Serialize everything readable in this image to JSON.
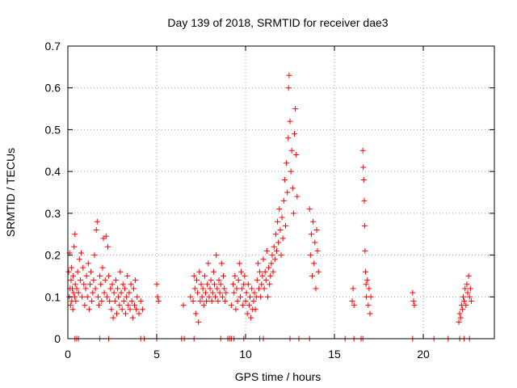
{
  "chart_data": {
    "type": "scatter",
    "title": "Day 139 of 2018, SRMTID for receiver dae3",
    "xlabel": "GPS time / hours",
    "ylabel": "SRMTID / TECUs",
    "xlim": [
      0,
      24
    ],
    "ylim": [
      0,
      0.7
    ],
    "xticks": [
      0,
      5,
      10,
      15,
      20
    ],
    "xtick_labels": [
      "0",
      "5",
      "10",
      "15",
      "20"
    ],
    "yticks": [
      0,
      0.1,
      0.2,
      0.3,
      0.4,
      0.5,
      0.6,
      0.7
    ],
    "ytick_labels": [
      "0",
      "0.1",
      "0.2",
      "0.3",
      "0.4",
      "0.5",
      "0.6",
      "0.7"
    ],
    "grid": true,
    "marker": "+",
    "color": "#ff0000",
    "series": [
      {
        "name": "SRMTID",
        "points": [
          [
            0.05,
            0.16
          ],
          [
            0.08,
            0.1
          ],
          [
            0.1,
            0.205
          ],
          [
            0.12,
            0.12
          ],
          [
            0.15,
            0.08
          ],
          [
            0.18,
            0.14
          ],
          [
            0.2,
            0.17
          ],
          [
            0.22,
            0.09
          ],
          [
            0.25,
            0.12
          ],
          [
            0.28,
            0.07
          ],
          [
            0.3,
            0.15
          ],
          [
            0.32,
            0.11
          ],
          [
            0.35,
            0.22
          ],
          [
            0.38,
            0.1
          ],
          [
            0.4,
            0.25
          ],
          [
            0.42,
            0.13
          ],
          [
            0.45,
            0.09
          ],
          [
            0.5,
            0.12
          ],
          [
            0.55,
            0.16
          ],
          [
            0.6,
            0.11
          ],
          [
            0.65,
            0.19
          ],
          [
            0.7,
            0.14
          ],
          [
            0.75,
            0.205
          ],
          [
            0.8,
            0.1
          ],
          [
            0.85,
            0.17
          ],
          [
            0.9,
            0.13
          ],
          [
            0.95,
            0.08
          ],
          [
            1.0,
            0.12
          ],
          [
            1.05,
            0.15
          ],
          [
            1.1,
            0.1
          ],
          [
            1.15,
            0.18
          ],
          [
            1.2,
            0.07
          ],
          [
            1.25,
            0.13
          ],
          [
            1.3,
            0.16
          ],
          [
            1.35,
            0.09
          ],
          [
            1.4,
            0.11
          ],
          [
            1.45,
            0.14
          ],
          [
            1.5,
            0.2
          ],
          [
            1.55,
            0.12
          ],
          [
            1.6,
            0.26
          ],
          [
            1.65,
            0.28
          ],
          [
            1.7,
            0.1
          ],
          [
            1.75,
            0.08
          ],
          [
            1.8,
            0.15
          ],
          [
            1.85,
            0.13
          ],
          [
            1.9,
            0.09
          ],
          [
            1.95,
            0.17
          ],
          [
            2.0,
            0.24
          ],
          [
            2.05,
            0.11
          ],
          [
            2.1,
            0.14
          ],
          [
            2.15,
            0.245
          ],
          [
            2.2,
            0.1
          ],
          [
            2.25,
            0.22
          ],
          [
            2.3,
            0.15
          ],
          [
            2.35,
            0.09
          ],
          [
            2.4,
            0.12
          ],
          [
            2.45,
            0.07
          ],
          [
            2.5,
            0.13
          ],
          [
            2.55,
            0.05
          ],
          [
            2.6,
            0.11
          ],
          [
            2.65,
            0.09
          ],
          [
            2.7,
            0.14
          ],
          [
            2.75,
            0.06
          ],
          [
            2.8,
            0.12
          ],
          [
            2.85,
            0.1
          ],
          [
            2.9,
            0.08
          ],
          [
            2.95,
            0.16
          ],
          [
            3.0,
            0.11
          ],
          [
            3.05,
            0.07
          ],
          [
            3.1,
            0.13
          ],
          [
            3.15,
            0.09
          ],
          [
            3.2,
            0.12
          ],
          [
            3.25,
            0.06
          ],
          [
            3.3,
            0.1
          ],
          [
            3.35,
            0.15
          ],
          [
            3.4,
            0.08
          ],
          [
            3.45,
            0.11
          ],
          [
            3.5,
            0.07
          ],
          [
            3.55,
            0.13
          ],
          [
            3.6,
            0.09
          ],
          [
            3.65,
            0.05
          ],
          [
            3.7,
            0.12
          ],
          [
            3.75,
            0.08
          ],
          [
            3.8,
            0.14
          ],
          [
            3.85,
            0.07
          ],
          [
            3.9,
            0.1
          ],
          [
            4.0,
            0.06
          ],
          [
            4.1,
            0.09
          ],
          [
            4.2,
            0.07
          ],
          [
            5.0,
            0.13
          ],
          [
            5.05,
            0.1
          ],
          [
            5.1,
            0.09
          ],
          [
            6.5,
            0.08
          ],
          [
            6.9,
            0.1
          ],
          [
            7.05,
            0.09
          ],
          [
            7.1,
            0.15
          ],
          [
            7.15,
            0.12
          ],
          [
            7.2,
            0.06
          ],
          [
            7.25,
            0.14
          ],
          [
            7.3,
            0.11
          ],
          [
            7.35,
            0.04
          ],
          [
            7.4,
            0.16
          ],
          [
            7.45,
            0.09
          ],
          [
            7.5,
            0.13
          ],
          [
            7.55,
            0.1
          ],
          [
            7.6,
            0.12
          ],
          [
            7.65,
            0.08
          ],
          [
            7.7,
            0.15
          ],
          [
            7.75,
            0.11
          ],
          [
            7.8,
            0.09
          ],
          [
            7.85,
            0.13
          ],
          [
            7.9,
            0.18
          ],
          [
            7.95,
            0.1
          ],
          [
            8.0,
            0.12
          ],
          [
            8.05,
            0.14
          ],
          [
            8.1,
            0.09
          ],
          [
            8.15,
            0.11
          ],
          [
            8.2,
            0.16
          ],
          [
            8.25,
            0.13
          ],
          [
            8.3,
            0.1
          ],
          [
            8.35,
            0.2
          ],
          [
            8.4,
            0.12
          ],
          [
            8.45,
            0.09
          ],
          [
            8.5,
            0.14
          ],
          [
            8.55,
            0.11
          ],
          [
            8.6,
            0.13
          ],
          [
            8.65,
            0.18
          ],
          [
            8.7,
            0.1
          ],
          [
            8.75,
            0.15
          ],
          [
            8.8,
            0.12
          ],
          [
            8.85,
            0.09
          ],
          [
            8.9,
            0.11
          ],
          [
            9.2,
            0.08
          ],
          [
            9.3,
            0.13
          ],
          [
            9.35,
            0.11
          ],
          [
            9.4,
            0.15
          ],
          [
            9.45,
            0.07
          ],
          [
            9.5,
            0.12
          ],
          [
            9.55,
            0.09
          ],
          [
            9.6,
            0.14
          ],
          [
            9.65,
            0.18
          ],
          [
            9.7,
            0.1
          ],
          [
            9.75,
            0.16
          ],
          [
            9.8,
            0.12
          ],
          [
            9.85,
            0.08
          ],
          [
            9.9,
            0.13
          ],
          [
            9.95,
            0.15
          ],
          [
            10.0,
            0.09
          ],
          [
            10.05,
            0.11
          ],
          [
            10.1,
            0.06
          ],
          [
            10.15,
            0.13
          ],
          [
            10.2,
            0.08
          ],
          [
            10.25,
            0.1
          ],
          [
            10.3,
            0.05
          ],
          [
            10.35,
            0.12
          ],
          [
            10.4,
            0.07
          ],
          [
            10.45,
            0.09
          ],
          [
            10.5,
            0.11
          ],
          [
            10.55,
            0.07
          ],
          [
            10.6,
            0.1
          ],
          [
            10.65,
            0.14
          ],
          [
            10.7,
            0.18
          ],
          [
            10.75,
            0.12
          ],
          [
            10.8,
            0.16
          ],
          [
            10.85,
            0.1
          ],
          [
            10.9,
            0.13
          ],
          [
            10.95,
            0.15
          ],
          [
            11.0,
            0.19
          ],
          [
            11.05,
            0.12
          ],
          [
            11.1,
            0.16
          ],
          [
            11.15,
            0.14
          ],
          [
            11.2,
            0.21
          ],
          [
            11.25,
            0.1
          ],
          [
            11.3,
            0.17
          ],
          [
            11.35,
            0.13
          ],
          [
            11.4,
            0.15
          ],
          [
            11.45,
            0.18
          ],
          [
            11.5,
            0.2
          ],
          [
            11.55,
            0.16
          ],
          [
            11.6,
            0.22
          ],
          [
            11.65,
            0.19
          ],
          [
            11.7,
            0.25
          ],
          [
            11.75,
            0.21
          ],
          [
            11.8,
            0.28
          ],
          [
            11.85,
            0.23
          ],
          [
            11.9,
            0.31
          ],
          [
            11.95,
            0.26
          ],
          [
            12.0,
            0.2
          ],
          [
            12.05,
            0.29
          ],
          [
            12.1,
            0.24
          ],
          [
            12.15,
            0.33
          ],
          [
            12.2,
            0.38
          ],
          [
            12.25,
            0.27
          ],
          [
            12.3,
            0.42
          ],
          [
            12.35,
            0.35
          ],
          [
            12.4,
            0.48
          ],
          [
            12.42,
            0.6
          ],
          [
            12.45,
            0.63
          ],
          [
            12.5,
            0.52
          ],
          [
            12.55,
            0.4
          ],
          [
            12.6,
            0.45
          ],
          [
            12.65,
            0.36
          ],
          [
            12.7,
            0.3
          ],
          [
            12.75,
            0.49
          ],
          [
            12.8,
            0.55
          ],
          [
            12.85,
            0.44
          ],
          [
            12.9,
            0.34
          ],
          [
            13.6,
            0.31
          ],
          [
            13.65,
            0.2
          ],
          [
            13.7,
            0.25
          ],
          [
            13.75,
            0.15
          ],
          [
            13.8,
            0.28
          ],
          [
            13.85,
            0.18
          ],
          [
            13.9,
            0.23
          ],
          [
            13.95,
            0.12
          ],
          [
            14.0,
            0.26
          ],
          [
            14.05,
            0.21
          ],
          [
            14.1,
            0.16
          ],
          [
            16.0,
            0.09
          ],
          [
            16.05,
            0.12
          ],
          [
            16.1,
            0.08
          ],
          [
            16.6,
            0.45
          ],
          [
            16.62,
            0.41
          ],
          [
            16.65,
            0.38
          ],
          [
            16.68,
            0.33
          ],
          [
            16.7,
            0.27
          ],
          [
            16.72,
            0.21
          ],
          [
            16.75,
            0.16
          ],
          [
            16.78,
            0.13
          ],
          [
            16.8,
            0.1
          ],
          [
            16.85,
            0.14
          ],
          [
            16.9,
            0.08
          ],
          [
            16.95,
            0.12
          ],
          [
            17.0,
            0.06
          ],
          [
            17.05,
            0.1
          ],
          [
            19.4,
            0.11
          ],
          [
            19.45,
            0.09
          ],
          [
            19.5,
            0.08
          ],
          [
            22.0,
            0.04
          ],
          [
            22.05,
            0.06
          ],
          [
            22.1,
            0.05
          ],
          [
            22.15,
            0.08
          ],
          [
            22.2,
            0.07
          ],
          [
            22.25,
            0.1
          ],
          [
            22.3,
            0.09
          ],
          [
            22.35,
            0.12
          ],
          [
            22.4,
            0.08
          ],
          [
            22.45,
            0.13
          ],
          [
            22.5,
            0.11
          ],
          [
            22.55,
            0.15
          ],
          [
            22.6,
            0.1
          ],
          [
            22.65,
            0.12
          ],
          [
            22.7,
            0.09
          ],
          [
            0.4,
            0.0
          ],
          [
            0.5,
            0.0
          ],
          [
            0.6,
            0.0
          ],
          [
            1.8,
            0.0
          ],
          [
            2.3,
            0.0
          ],
          [
            4.1,
            0.0
          ],
          [
            4.3,
            0.0
          ],
          [
            5.0,
            0.0
          ],
          [
            6.4,
            0.0
          ],
          [
            6.55,
            0.0
          ],
          [
            7.1,
            0.0
          ],
          [
            8.6,
            0.0
          ],
          [
            9.0,
            0.0
          ],
          [
            9.1,
            0.0
          ],
          [
            9.2,
            0.0
          ],
          [
            9.35,
            0.0
          ],
          [
            9.9,
            0.0
          ],
          [
            10.8,
            0.0
          ],
          [
            11.0,
            0.0
          ],
          [
            12.5,
            0.0
          ],
          [
            13.0,
            0.0
          ],
          [
            13.6,
            0.0
          ],
          [
            15.6,
            0.0
          ],
          [
            16.1,
            0.0
          ],
          [
            16.5,
            0.0
          ],
          [
            16.6,
            0.0
          ],
          [
            19.4,
            0.0
          ],
          [
            20.6,
            0.0
          ],
          [
            21.4,
            0.0
          ],
          [
            22.05,
            0.0
          ],
          [
            22.3,
            0.0
          ],
          [
            22.6,
            0.0
          ]
        ]
      }
    ]
  }
}
